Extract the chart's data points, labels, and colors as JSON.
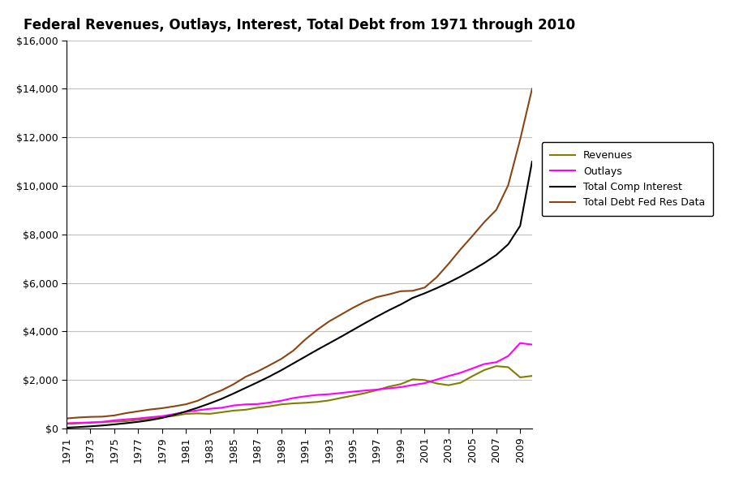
{
  "title": "Federal Revenues, Outlays, Interest, Total Debt from 1971 through 2010",
  "years": [
    1971,
    1972,
    1973,
    1974,
    1975,
    1976,
    1977,
    1978,
    1979,
    1980,
    1981,
    1982,
    1983,
    1984,
    1985,
    1986,
    1987,
    1988,
    1989,
    1990,
    1991,
    1992,
    1993,
    1994,
    1995,
    1996,
    1997,
    1998,
    1999,
    2000,
    2001,
    2002,
    2003,
    2004,
    2005,
    2006,
    2007,
    2008,
    2009,
    2010
  ],
  "revenues": [
    188,
    208,
    232,
    263,
    279,
    298,
    355,
    400,
    463,
    517,
    599,
    618,
    601,
    666,
    734,
    769,
    854,
    909,
    991,
    1032,
    1055,
    1091,
    1154,
    1258,
    1352,
    1453,
    1579,
    1722,
    1827,
    2025,
    1991,
    1853,
    1782,
    1880,
    2154,
    2407,
    2568,
    2524,
    2105,
    2163
  ],
  "outlays": [
    211,
    231,
    247,
    269,
    332,
    372,
    409,
    459,
    504,
    591,
    678,
    746,
    808,
    852,
    946,
    990,
    1004,
    1065,
    1144,
    1253,
    1324,
    1382,
    1410,
    1461,
    1516,
    1561,
    1601,
    1653,
    1702,
    1789,
    1863,
    2011,
    2160,
    2293,
    2472,
    2655,
    2729,
    2983,
    3518,
    3456
  ],
  "total_comp_interest": [
    30,
    55,
    85,
    120,
    165,
    215,
    270,
    340,
    430,
    555,
    700,
    855,
    1030,
    1220,
    1440,
    1670,
    1900,
    2140,
    2400,
    2680,
    2960,
    3240,
    3510,
    3780,
    4060,
    4340,
    4610,
    4870,
    5110,
    5380,
    5570,
    5780,
    6010,
    6260,
    6530,
    6820,
    7150,
    7590,
    8350,
    11000
  ],
  "total_debt": [
    410,
    450,
    475,
    485,
    534,
    631,
    706,
    780,
    833,
    909,
    995,
    1142,
    1377,
    1572,
    1823,
    2126,
    2346,
    2601,
    2868,
    3207,
    3665,
    4065,
    4412,
    4693,
    4974,
    5225,
    5413,
    5526,
    5657,
    5674,
    5807,
    6228,
    6783,
    7379,
    7933,
    8507,
    9008,
    10025,
    11910,
    14000
  ],
  "revenues_color": "#808000",
  "outlays_color": "#FF00FF",
  "interest_color": "#000000",
  "debt_color": "#8B4513",
  "background_color": "#FFFFFF",
  "ylim": [
    0,
    16000
  ],
  "ytick_values": [
    0,
    2000,
    4000,
    6000,
    8000,
    10000,
    12000,
    14000,
    16000
  ],
  "ytick_labels": [
    "$0",
    "$2,000",
    "$4,000",
    "$6,000",
    "$8,000",
    "$10,000",
    "$12,000",
    "$14,000",
    "$16,000"
  ],
  "legend_labels": [
    "Revenues",
    "Outlays",
    "Total Comp Interest",
    "Total Debt Fed Res Data"
  ],
  "title_fontsize": 12,
  "tick_fontsize": 9,
  "legend_fontsize": 9,
  "linewidth": 1.5
}
